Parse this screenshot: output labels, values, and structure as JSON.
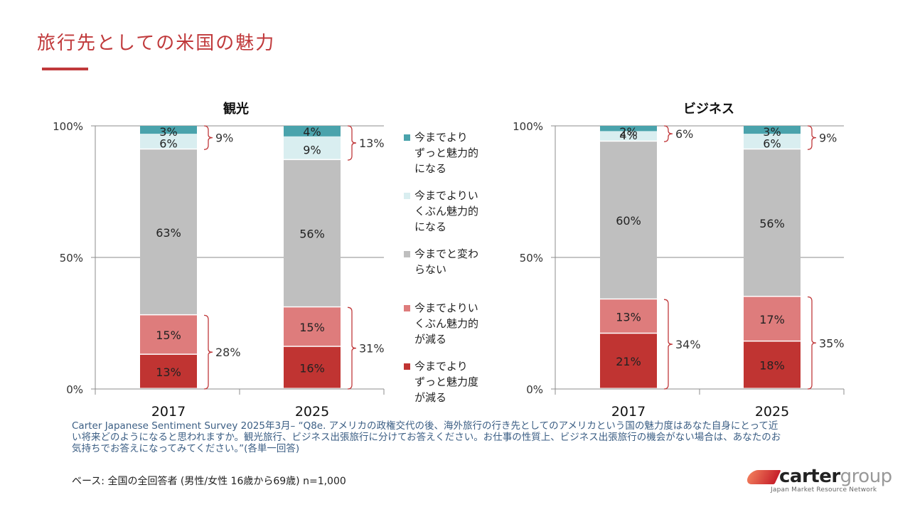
{
  "slide": {
    "title": "旅行先としての米国の魅力",
    "source_text": "Carter Japanese Sentiment Survey 2025年3月– “Q8e. アメリカの政権交代の後、海外旅行の行き先としてのアメリカという国の魅力度はあなた自身にとって近い将来どのようになると思われますか。観光旅行、ビジネス出張旅行に分けてお答えください。お仕事の性質上、ビジネス出張旅行の機会がない場合は、あなたのお気持ちでお答えになってみてください。”(各単一回答)",
    "base_text": "ベース: 全国の全回答者 (男性/女性 16歳から69歳) n=1,000",
    "logo": {
      "name_bold": "carter",
      "name_light": "group",
      "tagline": "Japan Market Resource Network"
    }
  },
  "legend": [
    {
      "label": "今までより\nずっと魅力的\nになる",
      "color": "#4aa3ac"
    },
    {
      "label": "今までよりい\nくぶん魅力的\nになる",
      "color": "#d9eef0"
    },
    {
      "label": "今までと変わ\nらない",
      "color": "#bfbfbf"
    },
    {
      "label": "今までよりい\nくぶん魅力的\nが減る",
      "color": "#de7c7c"
    },
    {
      "label": "今までより\nずっと魅力度\nが減る",
      "color": "#c03432"
    }
  ],
  "chart_data": [
    {
      "type": "bar",
      "stacked": true,
      "title": "観光",
      "categories": [
        "2017",
        "2025"
      ],
      "ylim": [
        0,
        100
      ],
      "yticks": [
        "0%",
        "50%",
        "100%"
      ],
      "series": [
        {
          "name": "今までよりずっと魅力度が減る",
          "values": [
            13,
            16
          ],
          "labels": [
            "13%",
            "16%"
          ]
        },
        {
          "name": "今までよりいくぶん魅力的が減る",
          "values": [
            15,
            15
          ],
          "labels": [
            "15%",
            "15%"
          ]
        },
        {
          "name": "今までと変わらない",
          "values": [
            63,
            56
          ],
          "labels": [
            "63%",
            "56%"
          ]
        },
        {
          "name": "今までよりいくぶん魅力的になる",
          "values": [
            6,
            9
          ],
          "labels": [
            "6%",
            "9%"
          ]
        },
        {
          "name": "今までよりずっと魅力的になる",
          "values": [
            3,
            4
          ],
          "labels": [
            "3%",
            "4%"
          ]
        }
      ],
      "brace_totals": {
        "negative": [
          "28%",
          "31%"
        ],
        "positive": [
          "9%",
          "13%"
        ]
      }
    },
    {
      "type": "bar",
      "stacked": true,
      "title": "ビジネス",
      "categories": [
        "2017",
        "2025"
      ],
      "ylim": [
        0,
        100
      ],
      "yticks": [
        "0%",
        "50%",
        "100%"
      ],
      "series": [
        {
          "name": "今までよりずっと魅力度が減る",
          "values": [
            21,
            18
          ],
          "labels": [
            "21%",
            "18%"
          ]
        },
        {
          "name": "今までよりいくぶん魅力的が減る",
          "values": [
            13,
            17
          ],
          "labels": [
            "13%",
            "17%"
          ]
        },
        {
          "name": "今までと変わらない",
          "values": [
            60,
            56
          ],
          "labels": [
            "60%",
            "56%"
          ]
        },
        {
          "name": "今までよりいくぶん魅力的になる",
          "values": [
            4,
            6
          ],
          "labels": [
            "4%",
            "6%"
          ]
        },
        {
          "name": "今までよりずっと魅力的になる",
          "values": [
            2,
            3
          ],
          "labels": [
            "2%",
            "3%"
          ]
        }
      ],
      "brace_totals": {
        "negative": [
          "34%",
          "35%"
        ],
        "positive": [
          "6%",
          "9%"
        ]
      }
    }
  ]
}
